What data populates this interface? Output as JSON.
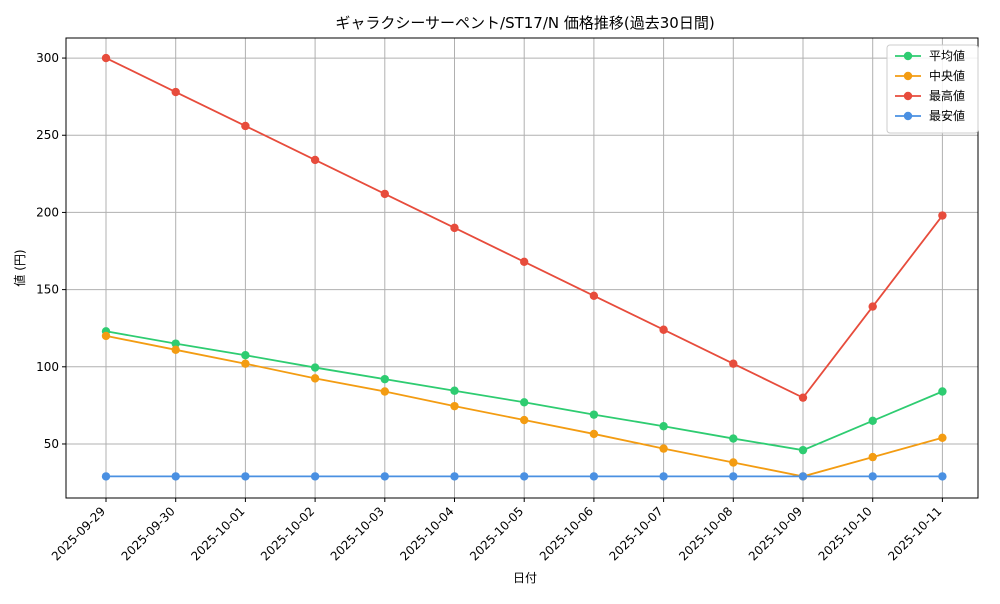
{
  "chart_data": {
    "type": "line",
    "title": "ギャラクシーサーペント/ST17/N 価格推移(過去30日間)",
    "xlabel": "日付",
    "ylabel": "値 (円)",
    "categories": [
      "2025-09-29",
      "2025-09-30",
      "2025-10-01",
      "2025-10-02",
      "2025-10-03",
      "2025-10-04",
      "2025-10-05",
      "2025-10-06",
      "2025-10-07",
      "2025-10-08",
      "2025-10-09",
      "2025-10-10",
      "2025-10-11"
    ],
    "yticks": [
      50,
      100,
      150,
      200,
      250,
      300
    ],
    "ylim": [
      15,
      313
    ],
    "grid": true,
    "legend_position": "top-right",
    "series": [
      {
        "name": "平均値",
        "color": "#2ecc71",
        "values": [
          123,
          115,
          107.5,
          99.5,
          92,
          84.5,
          77,
          69,
          61.5,
          53.5,
          46,
          65,
          84
        ]
      },
      {
        "name": "中央値",
        "color": "#f39c12",
        "values": [
          120,
          111,
          102,
          92.5,
          84,
          74.5,
          65.5,
          56.5,
          47,
          38,
          29,
          41.5,
          54
        ]
      },
      {
        "name": "最高値",
        "color": "#e74c3c",
        "values": [
          300,
          278,
          256,
          234,
          212,
          190,
          168,
          146,
          124,
          102,
          80,
          139,
          198
        ]
      },
      {
        "name": "最安値",
        "color": "#4a90e2",
        "values": [
          29,
          29,
          29,
          29,
          29,
          29,
          29,
          29,
          29,
          29,
          29,
          29,
          29
        ]
      }
    ]
  }
}
